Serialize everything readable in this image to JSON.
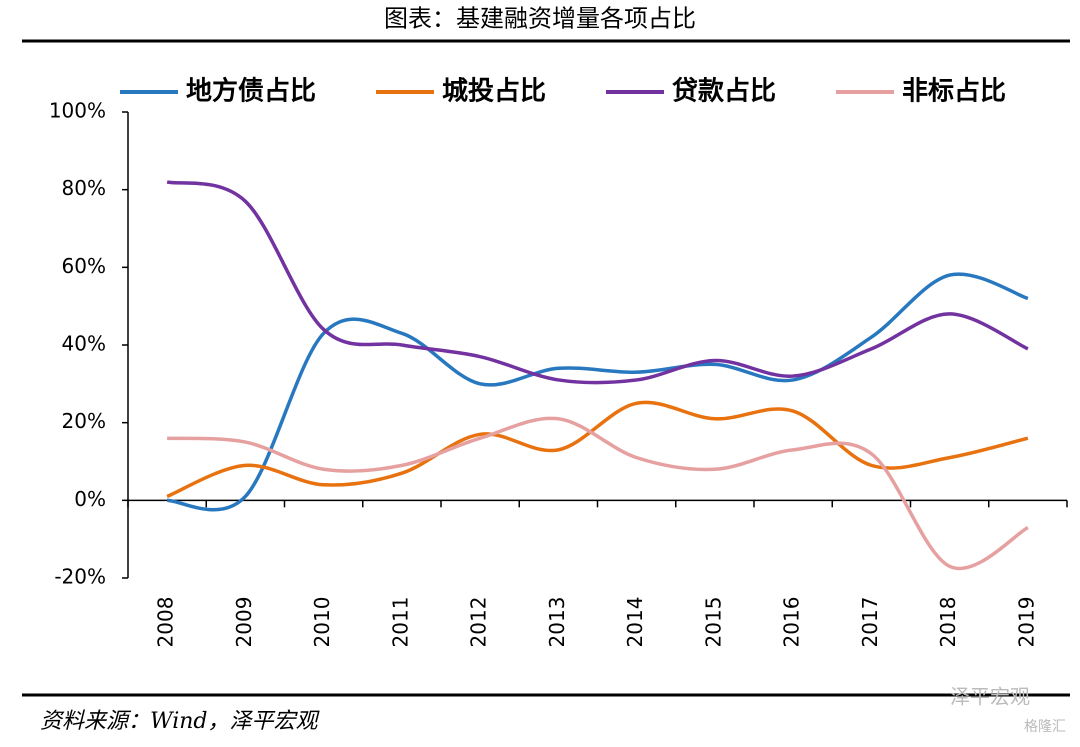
{
  "chart_data": {
    "type": "line",
    "title": "图表：基建融资增量各项占比",
    "source": "资料来源：Wind，泽平宏观",
    "watermark": [
      "泽平宏观",
      "格隆汇"
    ],
    "categories": [
      "2008",
      "2009",
      "2010",
      "2011",
      "2012",
      "2013",
      "2014",
      "2015",
      "2016",
      "2017",
      "2018",
      "2019"
    ],
    "series": [
      {
        "name": "地方债占比",
        "color": "#2878c0",
        "values": [
          0,
          1,
          43,
          43,
          30,
          34,
          33,
          35,
          31,
          42,
          58,
          52
        ]
      },
      {
        "name": "城投占比",
        "color": "#e8720f",
        "values": [
          1,
          9,
          4,
          7,
          17,
          13,
          25,
          21,
          23,
          9,
          11,
          16
        ]
      },
      {
        "name": "贷款占比",
        "color": "#7232a0",
        "values": [
          82,
          77,
          44,
          40,
          37,
          31,
          31,
          36,
          32,
          39,
          48,
          39
        ]
      },
      {
        "name": "非标占比",
        "color": "#e6a0a0",
        "values": [
          16,
          15,
          8,
          9,
          16,
          21,
          11,
          8,
          13,
          12,
          -17,
          -7
        ]
      }
    ],
    "ylim": [
      -20,
      100
    ],
    "yticks": [
      {
        "value": -20,
        "label": "-20%"
      },
      {
        "value": 0,
        "label": "0%"
      },
      {
        "value": 20,
        "label": "20%"
      },
      {
        "value": 40,
        "label": "40%"
      },
      {
        "value": 60,
        "label": "60%"
      },
      {
        "value": 80,
        "label": "80%"
      },
      {
        "value": 100,
        "label": "100%"
      }
    ],
    "legend": "top"
  }
}
